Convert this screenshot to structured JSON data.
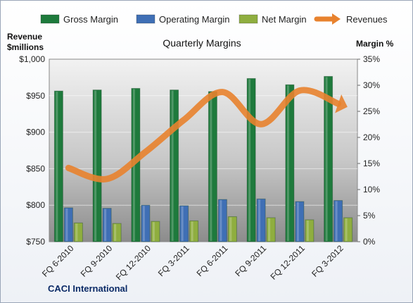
{
  "chart_data": {
    "type": "bar",
    "title": "Quarterly Margins",
    "categories": [
      "FQ 6-2010",
      "FQ 9-2010",
      "FQ 12-2010",
      "FQ 3-2011",
      "FQ 6-2011",
      "FQ 9-2011",
      "FQ 12-2011",
      "FQ 3-2012"
    ],
    "series": [
      {
        "name": "Gross Margin",
        "axis": "right",
        "color": "#1e7a3c",
        "values": [
          28.9,
          29.1,
          29.4,
          29.1,
          28.8,
          31.3,
          30.1,
          31.7
        ]
      },
      {
        "name": "Operating Margin",
        "axis": "right",
        "color": "#3f6fb5",
        "values": [
          6.5,
          6.4,
          7.0,
          6.9,
          8.1,
          8.2,
          7.7,
          7.9
        ]
      },
      {
        "name": "Net Margin",
        "axis": "right",
        "color": "#8fae3f",
        "values": [
          3.6,
          3.5,
          3.9,
          4.0,
          4.8,
          4.6,
          4.2,
          4.6
        ]
      },
      {
        "name": "Revenues",
        "axis": "left",
        "type": "line",
        "color": "#e8822e",
        "values": [
          851,
          836,
          873,
          917,
          955,
          911,
          957,
          939
        ]
      }
    ],
    "y_left": {
      "label_line1": "Revenue",
      "label_line2": "$millions",
      "min": 750,
      "max": 1000,
      "ticks": [
        "$750",
        "$800",
        "$850",
        "$900",
        "$950",
        "$1,000"
      ]
    },
    "y_right": {
      "label": "Margin %",
      "min": 0,
      "max": 35,
      "ticks": [
        "0%",
        "5%",
        "10%",
        "15%",
        "20%",
        "25%",
        "30%",
        "35%"
      ]
    },
    "legend": {
      "position": "top"
    },
    "grid": true
  },
  "source": "CACI International"
}
